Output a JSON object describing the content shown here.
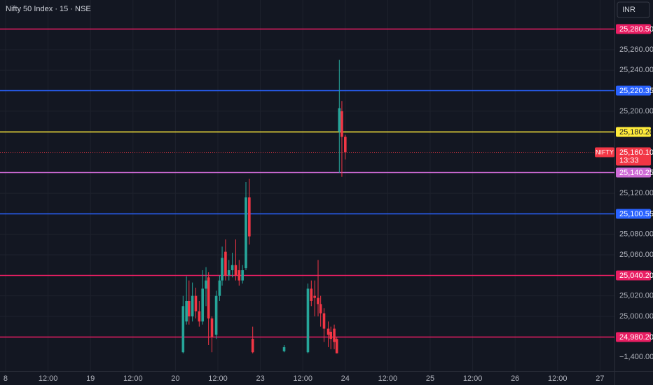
{
  "chart_data": {
    "type": "candlestick",
    "title": "Nifty 50 Index · 15 · NSE",
    "currency_button": "INR",
    "background": "#131722",
    "grid": true,
    "up_color": "#26a69a",
    "down_color": "#f23645",
    "ylim": [
      24963.8,
      25308.45
    ],
    "yticks": [
      {
        "value": 25260,
        "label": "25,260.00"
      },
      {
        "value": 25240,
        "label": "25,240.00"
      },
      {
        "value": 25200,
        "label": "25,200.00"
      },
      {
        "value": 25120,
        "label": "25,120.00"
      },
      {
        "value": 25080,
        "label": "25,080.00"
      },
      {
        "value": 25060,
        "label": "25,060.00"
      },
      {
        "value": 25020,
        "label": "25,020.00"
      },
      {
        "value": 25000,
        "label": "25,000.00"
      }
    ],
    "lower_scale_label": "−1,400.00",
    "xlim": [
      -0.066,
      7.17
    ],
    "xticks": [
      {
        "value": 0,
        "label": "8"
      },
      {
        "value": 0.5,
        "label": "12:00"
      },
      {
        "value": 1,
        "label": "19"
      },
      {
        "value": 1.5,
        "label": "12:00"
      },
      {
        "value": 2,
        "label": "20"
      },
      {
        "value": 2.5,
        "label": "12:00"
      },
      {
        "value": 3,
        "label": "23"
      },
      {
        "value": 3.5,
        "label": "12:00"
      },
      {
        "value": 4,
        "label": "24"
      },
      {
        "value": 4.5,
        "label": "12:00"
      },
      {
        "value": 5,
        "label": "25"
      },
      {
        "value": 5.5,
        "label": "12:00"
      },
      {
        "value": 6,
        "label": "26"
      },
      {
        "value": 6.5,
        "label": "12:00"
      },
      {
        "value": 7,
        "label": "27"
      }
    ],
    "candles": {
      "x": [
        2.09,
        2.13,
        2.16,
        2.2,
        2.24,
        2.28,
        2.32,
        2.36,
        2.39,
        2.43,
        2.48,
        2.52,
        2.55,
        2.59,
        2.63,
        2.67,
        2.71,
        2.75,
        2.79,
        2.83,
        2.87,
        2.91,
        3.28,
        3.56,
        3.6,
        3.64,
        3.68,
        3.71,
        3.75,
        3.8,
        3.83,
        3.87,
        3.9,
        3.93,
        3.96,
        4.0
      ],
      "open": [
        24965,
        24995,
        25015,
        25000,
        25020,
        25005,
        24995,
        25027,
        25038,
        24998,
        24982,
        25020,
        25035,
        25063,
        25040,
        25045,
        25050,
        25045,
        25035,
        25047,
        25116,
        24978,
        24966,
        24965,
        25027,
        25020,
        25018,
        25012,
        25003,
        24988,
        24985,
        24988,
        24978,
        25180,
        25200,
        25175
      ],
      "high": [
        25020,
        25039,
        25035,
        25033,
        25028,
        25015,
        25045,
        25048,
        25043,
        25000,
        25025,
        25040,
        25068,
        25075,
        25055,
        25062,
        25075,
        25055,
        25050,
        25131,
        25134,
        24990,
        24972,
        25032,
        25035,
        25035,
        25055,
        25020,
        25008,
        24995,
        24990,
        24992,
        24980,
        25250,
        25210,
        25177
      ],
      "low": [
        24964,
        24992,
        24992,
        24995,
        24998,
        24990,
        24992,
        25010,
        24972,
        24965,
        24978,
        25015,
        25030,
        25035,
        25035,
        25038,
        25035,
        25030,
        25032,
        25045,
        25070,
        24964,
        24965,
        24964,
        25010,
        25000,
        25000,
        24990,
        24975,
        24970,
        24968,
        24968,
        24964,
        25140,
        25136,
        25153
      ],
      "close": [
        25010,
        25015,
        25000,
        25020,
        25005,
        24995,
        25027,
        25035,
        24998,
        24980,
        25020,
        25035,
        25057,
        25040,
        25045,
        25050,
        25040,
        25035,
        25045,
        25116,
        25078,
        24965,
        24970,
        25027,
        25015,
        25018,
        25012,
        25003,
        24988,
        24982,
        24978,
        24975,
        24964,
        25203,
        25175,
        25160
      ]
    },
    "levels": [
      {
        "value": 25280.5,
        "label": "25,280.50",
        "color": "#e91e63"
      },
      {
        "value": 25220.35,
        "label": "25,220.35",
        "color": "#2962ff"
      },
      {
        "value": 25180.2,
        "label": "25,180.20",
        "color": "#ffeb3b"
      },
      {
        "value": 25140.25,
        "label": "25,140.25",
        "color": "#ce6bd6"
      },
      {
        "value": 25100.55,
        "label": "25,100.55",
        "color": "#2962ff"
      },
      {
        "value": 25040.2,
        "label": "25,040.20",
        "color": "#e91e63"
      },
      {
        "value": 24980.2,
        "label": "24,980.20",
        "color": "#e91e63"
      }
    ],
    "last_price": {
      "value": 25160.1,
      "label": "25,160.10",
      "symbol": "NIFTY",
      "countdown": "13:33",
      "color": "#f23645"
    }
  }
}
